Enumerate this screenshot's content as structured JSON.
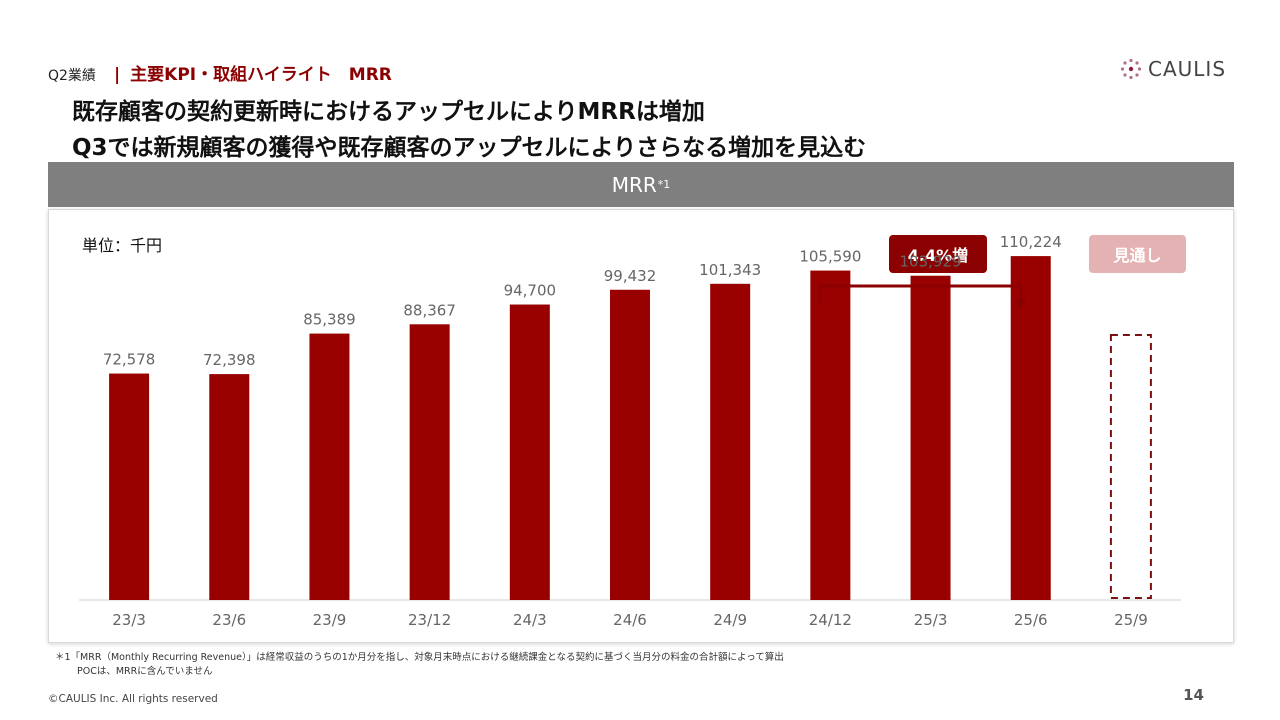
{
  "header": {
    "section": "Q2業績",
    "separator": "|",
    "topic": "主要KPI・取組ハイライト　MRR",
    "logo_text": "CAULIS"
  },
  "headline": {
    "line1": "既存顧客の契約更新時におけるアップセルによりMRRは増加",
    "line2": "Q3では新規顧客の獲得や既存顧客のアップセルによりさらなる増加を見込む"
  },
  "band": {
    "title": "MRR",
    "note_mark": "*1"
  },
  "chart_meta": {
    "unit_label": "単位：千円",
    "growth_label": "4.4%増",
    "forecast_label": "見通し"
  },
  "chart_data": {
    "type": "bar",
    "categories": [
      "23/3",
      "23/6",
      "23/9",
      "23/12",
      "24/3",
      "24/6",
      "24/9",
      "24/12",
      "25/3",
      "25/6",
      "25/9"
    ],
    "values": [
      72578,
      72398,
      85389,
      88367,
      94700,
      99432,
      101343,
      105590,
      103929,
      110224,
      null
    ],
    "ylim": [
      0,
      125000
    ],
    "forecast_category": "25/9",
    "growth_annotation": {
      "from": "24/12",
      "to": "25/6",
      "label": "4.4%増"
    },
    "colors": {
      "bar": "#990000",
      "forecast_outline": "#7a1010",
      "label": "#666666",
      "axis": "#d0d0d0"
    },
    "grid": false,
    "legend": "none"
  },
  "footnote": {
    "line1": "＊1「MRR（Monthly Recurring Revenue）」は経常収益のうちの1か月分を指し、対象月末時点における継続課金となる契約に基づく当月分の料金の合計額によって算出",
    "line2": "POCは、MRRに含んでいません"
  },
  "footer": {
    "copyright": "©CAULIS Inc. All rights reserved",
    "page_number": "14"
  }
}
